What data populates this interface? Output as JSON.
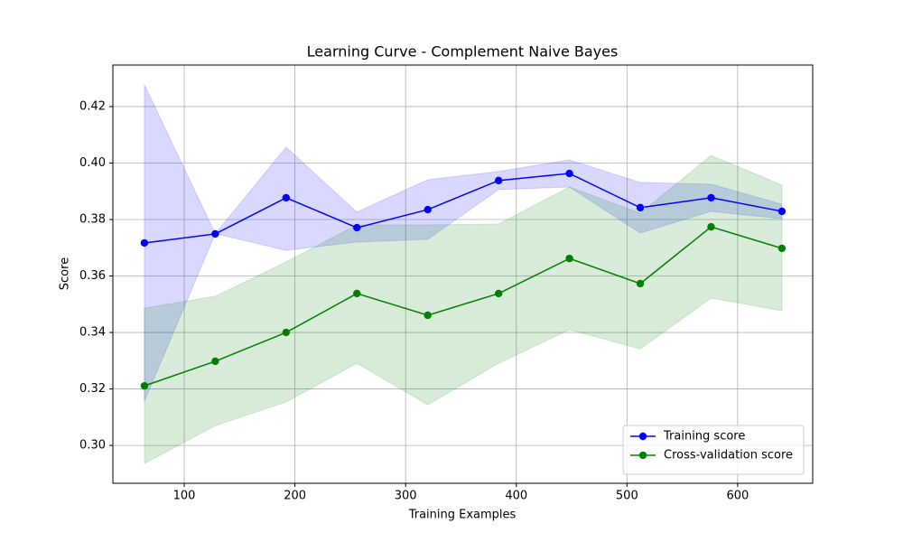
{
  "chart_data": {
    "type": "line",
    "title": "Learning Curve - Complement Naive Bayes",
    "x_label": "Training Examples",
    "y_label": "Score",
    "x": [
      64,
      128,
      192,
      256,
      320,
      384,
      448,
      512,
      576,
      640
    ],
    "series": [
      {
        "name": "Training score",
        "color": "#0000ff",
        "values": [
          0.3717,
          0.3749,
          0.3877,
          0.3771,
          0.3835,
          0.3938,
          0.3963,
          0.3842,
          0.3877,
          0.3829
        ],
        "upper": [
          0.4277,
          0.375,
          0.4056,
          0.3826,
          0.3941,
          0.397,
          0.4011,
          0.3931,
          0.3925,
          0.3854
        ],
        "lower": [
          0.3157,
          0.375,
          0.3691,
          0.372,
          0.373,
          0.3906,
          0.3915,
          0.3752,
          0.3829,
          0.3803
        ]
      },
      {
        "name": "Cross-validation score",
        "color": "#008000",
        "values": [
          0.3211,
          0.3298,
          0.34,
          0.3538,
          0.3461,
          0.3538,
          0.3662,
          0.3573,
          0.3774,
          0.3698
        ],
        "upper": [
          0.3486,
          0.3528,
          0.365,
          0.3781,
          0.3781,
          0.3784,
          0.3915,
          0.3822,
          0.4027,
          0.3922
        ],
        "lower": [
          0.2936,
          0.307,
          0.3154,
          0.3291,
          0.3144,
          0.3291,
          0.341,
          0.3342,
          0.3522,
          0.3477
        ]
      }
    ],
    "xlim": [
      35.5,
      667.8
    ],
    "ylim": [
      0.2866,
      0.4347
    ],
    "xticks": [
      100,
      200,
      300,
      400,
      500,
      600
    ],
    "yticks": [
      {
        "value": 0.3,
        "label": "0.30"
      },
      0.32,
      0.34,
      0.36,
      0.38,
      {
        "value": 0.4,
        "label": "0.40"
      },
      0.42
    ],
    "grid": true,
    "legend": "lower right"
  }
}
